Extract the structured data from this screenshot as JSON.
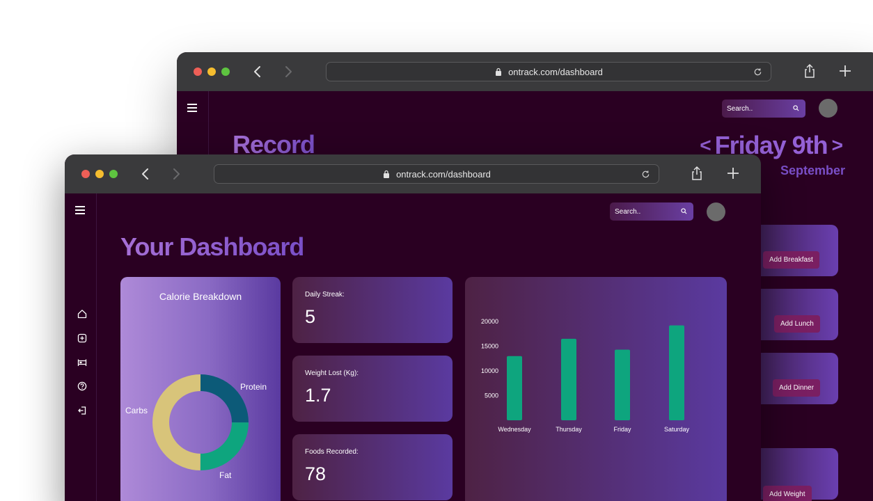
{
  "back_window": {
    "url": "ontrack.com/dashboard",
    "search_placeholder": "Search..",
    "title": "Record",
    "date": "Friday 9th",
    "prev": "<",
    "next": ">",
    "month": "September",
    "meal_buttons": [
      "Add Breakfast",
      "Add Lunch",
      "Add Dinner",
      "Add Weight"
    ]
  },
  "front_window": {
    "url": "ontrack.com/dashboard",
    "search_placeholder": "Search..",
    "title": "Your Dashboard",
    "sidebar_icons": [
      "home-icon",
      "add-icon",
      "bed-icon",
      "help-icon",
      "logout-icon"
    ],
    "calorie": {
      "title": "Calorie Breakdown",
      "segments": [
        {
          "label": "Protein",
          "share": 0.25,
          "color": "#0c5a78"
        },
        {
          "label": "Fat",
          "share": 0.25,
          "color": "#0ea57e"
        },
        {
          "label": "Carbs",
          "share": 0.5,
          "color": "#d8c47a"
        }
      ]
    },
    "stats": [
      {
        "label": "Daily Streak:",
        "value": "5"
      },
      {
        "label": "Weight Lost (Kg):",
        "value": "1.7"
      },
      {
        "label": "Foods Recorded:",
        "value": "78"
      }
    ]
  },
  "chart_data": {
    "type": "bar",
    "categories": [
      "Wednesday",
      "Thursday",
      "Friday",
      "Saturday"
    ],
    "values": [
      13000,
      16500,
      14300,
      19200
    ],
    "ytick_labels": [
      "20000",
      "15000",
      "10000",
      "5000"
    ],
    "ylim": [
      0,
      20000
    ],
    "bar_color": "#0ea57e",
    "title": "",
    "xlabel": "",
    "ylabel": ""
  }
}
